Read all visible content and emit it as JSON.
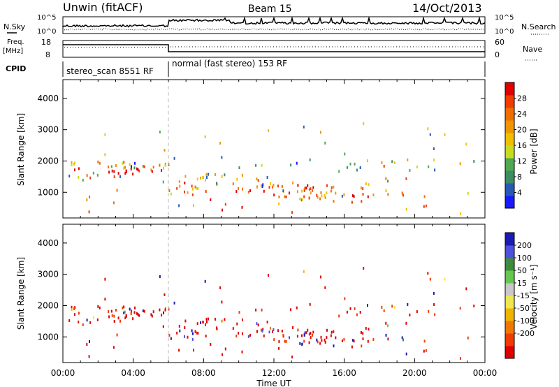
{
  "header": {
    "radar": "Unwin (fitACF)",
    "beam": "Beam 15",
    "date": "14/Oct/2013"
  },
  "status_panel": {
    "nsky_label": "N.Sky",
    "nsearch_label": "N.Search",
    "noise_ticks": [
      "10^5",
      "10^0"
    ],
    "freq_label": "Freq.",
    "freq_unit": "[MHz]",
    "freq_ticks": [
      "18",
      "8"
    ],
    "nave_label": "Nave",
    "nave_ticks": [
      "60",
      "0"
    ],
    "cpid_label": "CPID",
    "programs": [
      "stereo_scan 8551 RF",
      "normal (fast stereo) 153 RF"
    ]
  },
  "colors": {
    "power": [
      "#1a1aff",
      "#285ab4",
      "#3c8c64",
      "#50a850",
      "#c8dc1e",
      "#f0c000",
      "#f09600",
      "#f06e00",
      "#f03c00",
      "#e00000"
    ],
    "velocity": [
      "#1a1ab4",
      "#5050dc",
      "#3c8c3c",
      "#64c850",
      "#c8c8c8",
      "#f0e650",
      "#f0b400",
      "#f07800",
      "#f03c00",
      "#e00000"
    ]
  },
  "chart_data": [
    {
      "type": "heatmap",
      "title": "",
      "xlabel": "Time UT",
      "ylabel": "Slant Range [km]",
      "x_ticks": [
        "00:00",
        "04:00",
        "08:00",
        "12:00",
        "16:00",
        "20:00",
        "00:00"
      ],
      "xlim_hours": [
        0,
        24
      ],
      "y_ticks": [
        "1000",
        "2000",
        "3000",
        "4000"
      ],
      "ylim": [
        180,
        4600
      ],
      "colorbar_label": "Power [dB]",
      "colorbar_ticks": [
        "4",
        "8",
        "12",
        "16",
        "20",
        "24",
        "28"
      ],
      "colorbar_range": [
        0,
        32
      ],
      "program_change_hour": 6
    },
    {
      "type": "heatmap",
      "title": "",
      "xlabel": "Time UT",
      "ylabel": "Slant Range [km]",
      "x_ticks": [
        "00:00",
        "04:00",
        "08:00",
        "12:00",
        "16:00",
        "20:00",
        "00:00"
      ],
      "xlim_hours": [
        0,
        24
      ],
      "y_ticks": [
        "1000",
        "2000",
        "3000",
        "4000"
      ],
      "ylim": [
        180,
        4600
      ],
      "colorbar_label": "Velocity [m s⁻¹]",
      "colorbar_ticks": [
        "200",
        "100",
        "50",
        "15",
        "-15",
        "-50",
        "-100",
        "-200"
      ],
      "program_change_hour": 6
    }
  ]
}
